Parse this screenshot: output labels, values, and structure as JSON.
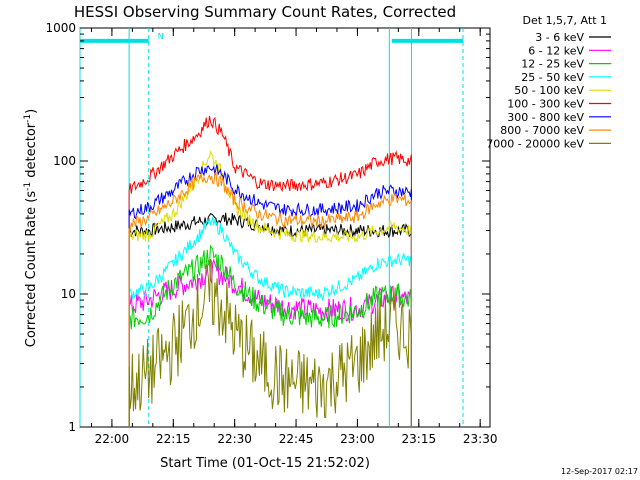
{
  "chart_data": {
    "type": "line",
    "title": "HESSI Observing Summary Count Rates, Corrected",
    "xlabel": "Start Time (01-Oct-15 21:52:02)",
    "ylabel_main": "Corrected Count Rate (s",
    "ylabel_sup1": "-1",
    "ylabel_mid": " detector",
    "ylabel_sup2": "-1",
    "ylabel_end": ")",
    "yscale": "log",
    "ylim": [
      1,
      1000
    ],
    "xlim_minutes": [
      21.87,
      23.54
    ],
    "x_ticks": [
      {
        "label": "22:00",
        "value": 22.0
      },
      {
        "label": "22:15",
        "value": 22.25
      },
      {
        "label": "22:30",
        "value": 22.5
      },
      {
        "label": "22:45",
        "value": 22.75
      },
      {
        "label": "23:00",
        "value": 23.0
      },
      {
        "label": "23:15",
        "value": 23.25
      },
      {
        "label": "23:30",
        "value": 23.5
      }
    ],
    "y_ticks": [
      {
        "label": "1",
        "value": 1
      },
      {
        "label": "10",
        "value": 10
      },
      {
        "label": "100",
        "value": 100
      },
      {
        "label": "1000",
        "value": 1000
      }
    ],
    "legend_title": "Det 1,5,7, Att 1",
    "legend_placement": "right",
    "night_marker": "N",
    "night_bars": [
      {
        "start": 21.87,
        "end": 22.15,
        "level": 800
      },
      {
        "start": 23.14,
        "end": 23.43,
        "level": 800
      }
    ],
    "night_lines_solid": [
      21.87,
      22.07,
      23.13,
      23.22
    ],
    "night_lines_dashed": [
      22.15,
      23.43
    ],
    "data_window": [
      22.07,
      23.22
    ],
    "series": [
      {
        "name": "3 - 6 keV",
        "color": "#000000",
        "x": [
          22.07,
          22.15,
          22.25,
          22.35,
          22.45,
          22.5,
          22.6,
          22.7,
          22.85,
          23.0,
          23.1,
          23.2,
          23.22
        ],
        "y": [
          30,
          30,
          32,
          35,
          37,
          36,
          33,
          30,
          30,
          30,
          30,
          30,
          30
        ]
      },
      {
        "name": "6 - 12 keV",
        "color": "#ff00ff",
        "x": [
          22.07,
          22.15,
          22.25,
          22.35,
          22.4,
          22.45,
          22.5,
          22.6,
          22.7,
          22.85,
          23.0,
          23.08,
          23.15,
          23.22
        ],
        "y": [
          8,
          9,
          11,
          13,
          15,
          14,
          12,
          9,
          8,
          7.5,
          7.8,
          9,
          9.5,
          9
        ]
      },
      {
        "name": "12 - 25 keV",
        "color": "#00d000",
        "x": [
          22.07,
          22.15,
          22.25,
          22.35,
          22.4,
          22.45,
          22.5,
          22.6,
          22.7,
          22.85,
          23.0,
          23.08,
          23.15,
          23.22
        ],
        "y": [
          6.5,
          7,
          12,
          16,
          20,
          17,
          12,
          8.5,
          7,
          6.5,
          7.5,
          9.5,
          10,
          9
        ]
      },
      {
        "name": "25 - 50 keV",
        "color": "#00ffff",
        "x": [
          22.07,
          22.15,
          22.25,
          22.35,
          22.4,
          22.45,
          22.5,
          22.6,
          22.7,
          22.85,
          23.0,
          23.08,
          23.15,
          23.22
        ],
        "y": [
          10,
          11,
          17,
          27,
          35,
          30,
          20,
          13,
          10.5,
          10,
          13,
          17,
          18,
          18
        ]
      },
      {
        "name": "50 - 100 keV",
        "color": "#dddd00",
        "x": [
          22.07,
          22.15,
          22.25,
          22.35,
          22.4,
          22.45,
          22.5,
          22.6,
          22.7,
          22.85,
          23.0,
          23.08,
          23.15,
          23.22
        ],
        "y": [
          27,
          28,
          40,
          75,
          115,
          80,
          45,
          32,
          28,
          27,
          27,
          30,
          32,
          30
        ]
      },
      {
        "name": "100 - 300 keV",
        "color": "#ff0000",
        "x": [
          22.07,
          22.15,
          22.25,
          22.35,
          22.4,
          22.45,
          22.5,
          22.6,
          22.7,
          22.85,
          23.0,
          23.08,
          23.15,
          23.22
        ],
        "y": [
          60,
          75,
          110,
          160,
          210,
          160,
          90,
          68,
          65,
          68,
          78,
          100,
          105,
          100
        ]
      },
      {
        "name": "300 - 800 keV",
        "color": "#0000ff",
        "x": [
          22.07,
          22.15,
          22.25,
          22.35,
          22.4,
          22.45,
          22.5,
          22.6,
          22.7,
          22.85,
          23.0,
          23.08,
          23.15,
          23.22
        ],
        "y": [
          40,
          45,
          60,
          85,
          90,
          80,
          62,
          48,
          43,
          43,
          46,
          58,
          60,
          58
        ]
      },
      {
        "name": "800 - 7000 keV",
        "color": "#ff8800",
        "x": [
          22.07,
          22.15,
          22.25,
          22.35,
          22.4,
          22.45,
          22.5,
          22.6,
          22.7,
          22.85,
          23.0,
          23.08,
          23.15,
          23.22
        ],
        "y": [
          33,
          37,
          50,
          72,
          78,
          68,
          50,
          40,
          36,
          35,
          38,
          48,
          52,
          50
        ]
      },
      {
        "name": "7000 - 20000 keV",
        "color": "#808000",
        "x": [
          22.07,
          22.15,
          22.25,
          22.35,
          22.4,
          22.45,
          22.5,
          22.6,
          22.7,
          22.85,
          23.0,
          23.08,
          23.15,
          23.22
        ],
        "y": [
          2,
          2.5,
          4,
          8,
          10,
          8,
          5,
          3,
          2.2,
          2,
          3,
          5,
          6,
          5
        ]
      }
    ]
  },
  "footer": {
    "timestamp": "12-Sep-2017 02:17"
  }
}
